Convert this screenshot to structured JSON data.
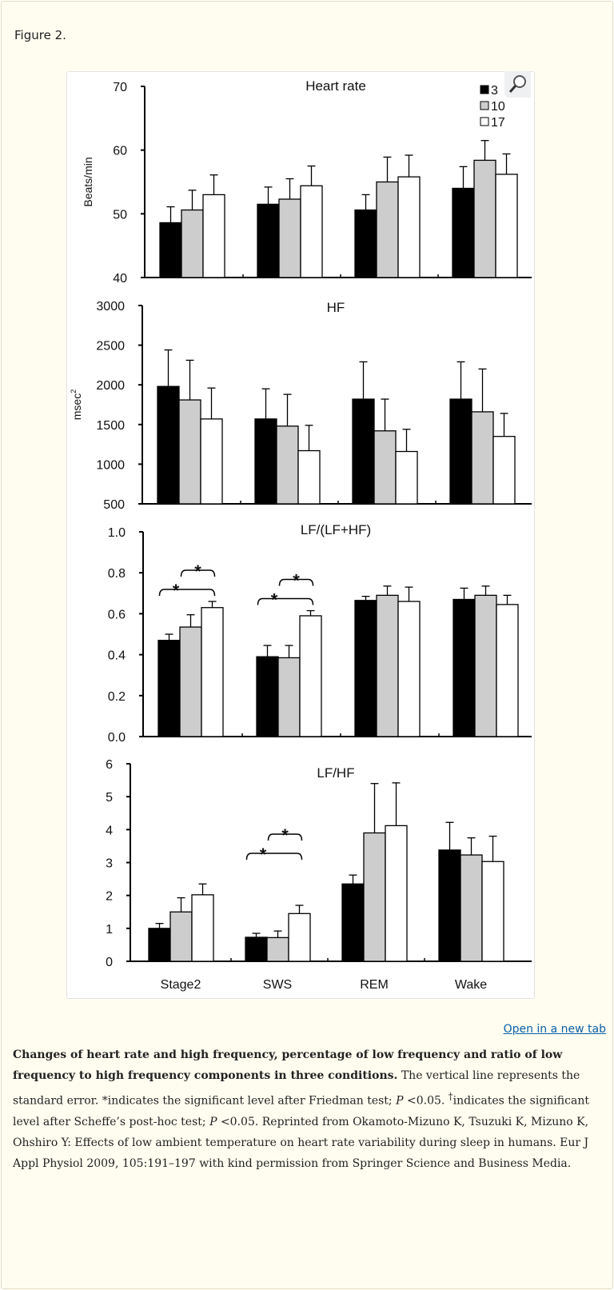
{
  "figure_label": "Figure 2.",
  "open_link": "Open in a new tab",
  "magnifier_icon": "magnifier-zoom-icon",
  "caption": {
    "bold": "Changes of heart rate and high frequency, percentage of low frequency and ratio of low frequency to high frequency components in three conditions.",
    "t1": " The vertical line represents the standard error. *indicates the significant level after Friedman test; ",
    "p1": "P",
    "t2": " <0.05. ",
    "dagger": "†",
    "t3": "indicates the significant level after Scheffe’s post-hoc test; ",
    "p2": "P",
    "t4": " <0.05. Reprinted from Okamoto-Mizuno K, Tsuzuki K, Mizuno K, Ohshiro Y: Effects of low ambient temperature on heart rate variability during sleep in humans. Eur J Appl Physiol 2009, 105:191–197 with kind permission from Springer Science and Business Media."
  },
  "legend": [
    {
      "name": "3",
      "color": "#000000"
    },
    {
      "name": "10",
      "color": "#cccccc"
    },
    {
      "name": "17",
      "color": "#ffffff"
    }
  ],
  "chart_data": [
    {
      "type": "bar",
      "title": "Heart rate",
      "ylabel": "Beats/min",
      "ylim": [
        40,
        70
      ],
      "yticks": [
        "40",
        "50",
        "60",
        "70"
      ],
      "categories": [
        "Stage2",
        "SWS",
        "REM",
        "Wake"
      ],
      "legend_position": "top-right",
      "series": [
        {
          "name": "3",
          "values": [
            48.6,
            51.5,
            50.6,
            54.0
          ],
          "error": [
            2.5,
            2.7,
            2.4,
            3.4
          ]
        },
        {
          "name": "10",
          "values": [
            50.6,
            52.3,
            55.0,
            58.4
          ],
          "error": [
            3.1,
            3.2,
            3.9,
            3.1
          ]
        },
        {
          "name": "17",
          "values": [
            53.0,
            54.4,
            55.8,
            56.2
          ],
          "error": [
            3.1,
            3.1,
            3.4,
            3.2
          ]
        }
      ],
      "significance": []
    },
    {
      "type": "bar",
      "title": "HF",
      "ylabel": "msec",
      "ylabel_sup": "2",
      "ylim": [
        500,
        3000
      ],
      "yticks": [
        "500",
        "1000",
        "1500",
        "2000",
        "2500",
        "3000"
      ],
      "categories": [
        "Stage2",
        "SWS",
        "REM",
        "Wake"
      ],
      "series": [
        {
          "name": "3",
          "values": [
            1980,
            1570,
            1820,
            1820
          ],
          "error": [
            460,
            380,
            470,
            470
          ]
        },
        {
          "name": "10",
          "values": [
            1810,
            1480,
            1420,
            1660
          ],
          "error": [
            500,
            400,
            400,
            540
          ]
        },
        {
          "name": "17",
          "values": [
            1570,
            1170,
            1160,
            1350
          ],
          "error": [
            390,
            320,
            280,
            290
          ]
        }
      ],
      "significance": []
    },
    {
      "type": "bar",
      "title": "LF/(LF+HF)",
      "ylabel": "",
      "ylim": [
        0,
        1.0
      ],
      "yticks": [
        "0.0",
        "0.2",
        "0.4",
        "0.6",
        "0.8",
        "1.0"
      ],
      "categories": [
        "Stage2",
        "SWS",
        "REM",
        "Wake"
      ],
      "series": [
        {
          "name": "3",
          "values": [
            0.47,
            0.39,
            0.665,
            0.67
          ],
          "error": [
            0.03,
            0.055,
            0.02,
            0.055
          ]
        },
        {
          "name": "10",
          "values": [
            0.535,
            0.385,
            0.69,
            0.69
          ],
          "error": [
            0.06,
            0.06,
            0.045,
            0.045
          ]
        },
        {
          "name": "17",
          "values": [
            0.63,
            0.59,
            0.66,
            0.645
          ],
          "error": [
            0.03,
            0.025,
            0.07,
            0.045
          ]
        }
      ],
      "significance": [
        {
          "category": "Stage2",
          "from": "3",
          "to": "17",
          "mark": "*"
        },
        {
          "category": "Stage2",
          "from": "10",
          "to": "17",
          "mark": "*"
        },
        {
          "category": "SWS",
          "from": "3",
          "to": "17",
          "mark": "*"
        },
        {
          "category": "SWS",
          "from": "10",
          "to": "17",
          "mark": "*"
        }
      ]
    },
    {
      "type": "bar",
      "title": "LF/HF",
      "ylabel": "",
      "ylim": [
        0,
        6
      ],
      "yticks": [
        "0",
        "1",
        "2",
        "3",
        "4",
        "5",
        "6"
      ],
      "categories": [
        "Stage2",
        "SWS",
        "REM",
        "Wake"
      ],
      "series": [
        {
          "name": "3",
          "values": [
            1.0,
            0.73,
            2.35,
            3.38
          ],
          "error": [
            0.15,
            0.12,
            0.27,
            0.84
          ]
        },
        {
          "name": "10",
          "values": [
            1.5,
            0.72,
            3.9,
            3.23
          ],
          "error": [
            0.43,
            0.2,
            1.5,
            0.52
          ]
        },
        {
          "name": "17",
          "values": [
            2.02,
            1.45,
            4.12,
            3.03
          ],
          "error": [
            0.33,
            0.25,
            1.3,
            0.77
          ]
        }
      ],
      "significance": [
        {
          "category": "SWS",
          "from": "3",
          "to": "17",
          "mark": "*"
        },
        {
          "category": "SWS",
          "from": "10",
          "to": "17",
          "mark": "*"
        }
      ]
    }
  ]
}
